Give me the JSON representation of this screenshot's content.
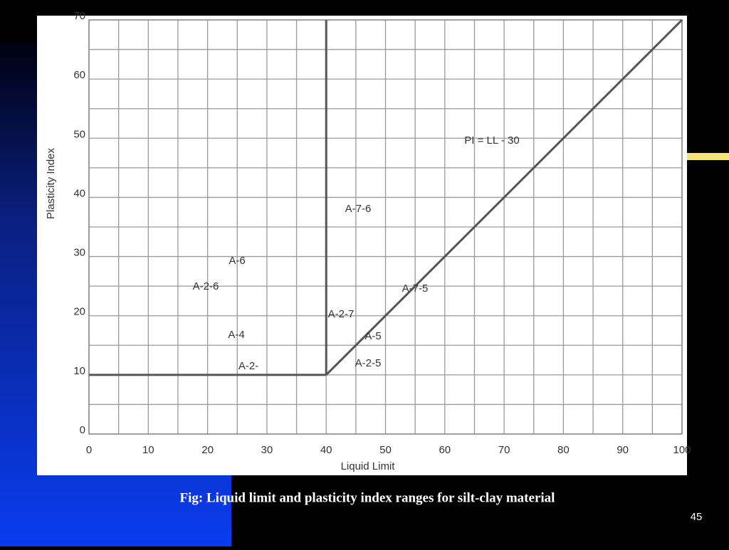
{
  "chart_data": {
    "type": "line",
    "xlabel": "Liquid Limit",
    "ylabel": "Plasticity Index",
    "xlim": [
      0,
      100
    ],
    "ylim": [
      0,
      70
    ],
    "xticks": [
      0,
      10,
      20,
      30,
      40,
      50,
      60,
      70,
      80,
      90,
      100
    ],
    "yticks": [
      0,
      10,
      20,
      30,
      40,
      50,
      60,
      70
    ],
    "grid": true,
    "minor_grid": true,
    "series": [
      {
        "color": "#555555",
        "x": [
          0,
          40
        ],
        "values": [
          10,
          10
        ]
      },
      {
        "color": "#555555",
        "x": [
          40,
          40
        ],
        "values": [
          10,
          70
        ]
      },
      {
        "color": "#555555",
        "x": [
          40,
          100
        ],
        "values": [
          10,
          70
        ]
      }
    ],
    "annotations": [
      "PI = LL - 30",
      "A-7-6",
      "A-6",
      "A-2-6",
      "A-7-5",
      "A-2-7",
      "A-4",
      "A-5",
      "A-2-",
      "A-2-5"
    ]
  },
  "caption": "Fig:  Liquid limit and plasticity index ranges for silt-clay material",
  "page_number": "45"
}
